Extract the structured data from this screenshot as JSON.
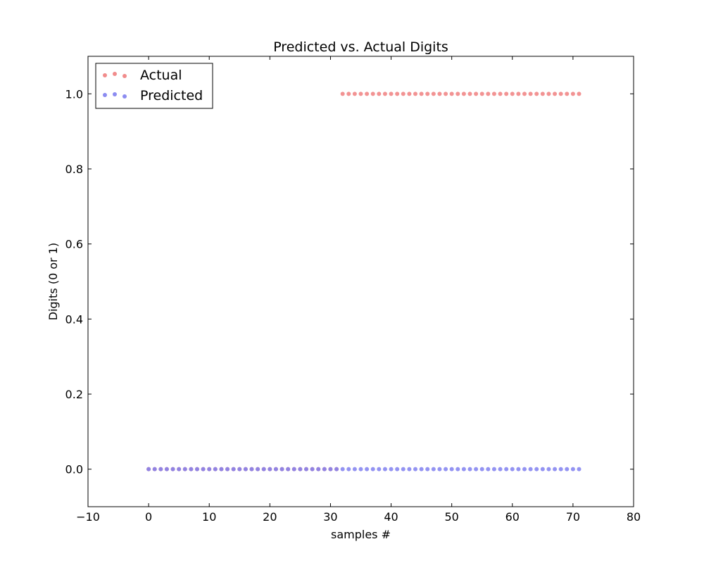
{
  "chart_data": {
    "type": "scatter",
    "title": "Predicted vs. Actual Digits",
    "xlabel": "samples #",
    "ylabel": "Digits (0 or 1)",
    "xlim": [
      -10,
      80
    ],
    "ylim": [
      -0.1,
      1.1
    ],
    "xticks": [
      -10,
      0,
      10,
      20,
      30,
      40,
      50,
      60,
      70,
      80
    ],
    "xtick_labels": [
      "−10",
      "0",
      "10",
      "20",
      "30",
      "40",
      "50",
      "60",
      "70",
      "80"
    ],
    "yticks": [
      0.0,
      0.2,
      0.4,
      0.6,
      0.8,
      1.0
    ],
    "ytick_labels": [
      "0.0",
      "0.2",
      "0.4",
      "0.6",
      "0.8",
      "1.0"
    ],
    "grid": false,
    "legend_position": "top-left",
    "x": [
      0,
      1,
      2,
      3,
      4,
      5,
      6,
      7,
      8,
      9,
      10,
      11,
      12,
      13,
      14,
      15,
      16,
      17,
      18,
      19,
      20,
      21,
      22,
      23,
      24,
      25,
      26,
      27,
      28,
      29,
      30,
      31,
      32,
      33,
      34,
      35,
      36,
      37,
      38,
      39,
      40,
      41,
      42,
      43,
      44,
      45,
      46,
      47,
      48,
      49,
      50,
      51,
      52,
      53,
      54,
      55,
      56,
      57,
      58,
      59,
      60,
      61,
      62,
      63,
      64,
      65,
      66,
      67,
      68,
      69,
      70,
      71
    ],
    "series": [
      {
        "name": "Actual",
        "color": "#f08080",
        "values": [
          0,
          0,
          0,
          0,
          0,
          0,
          0,
          0,
          0,
          0,
          0,
          0,
          0,
          0,
          0,
          0,
          0,
          0,
          0,
          0,
          0,
          0,
          0,
          0,
          0,
          0,
          0,
          0,
          0,
          0,
          0,
          0,
          1,
          1,
          1,
          1,
          1,
          1,
          1,
          1,
          1,
          1,
          1,
          1,
          1,
          1,
          1,
          1,
          1,
          1,
          1,
          1,
          1,
          1,
          1,
          1,
          1,
          1,
          1,
          1,
          1,
          1,
          1,
          1,
          1,
          1,
          1,
          1,
          1,
          1,
          1,
          1
        ]
      },
      {
        "name": "Predicted",
        "color": "#8080f0",
        "values": [
          0,
          0,
          0,
          0,
          0,
          0,
          0,
          0,
          0,
          0,
          0,
          0,
          0,
          0,
          0,
          0,
          0,
          0,
          0,
          0,
          0,
          0,
          0,
          0,
          0,
          0,
          0,
          0,
          0,
          0,
          0,
          0,
          0,
          0,
          0,
          0,
          0,
          0,
          0,
          0,
          0,
          0,
          0,
          0,
          0,
          0,
          0,
          0,
          0,
          0,
          0,
          0,
          0,
          0,
          0,
          0,
          0,
          0,
          0,
          0,
          0,
          0,
          0,
          0,
          0,
          0,
          0,
          0,
          0,
          0,
          0,
          0
        ]
      }
    ]
  }
}
